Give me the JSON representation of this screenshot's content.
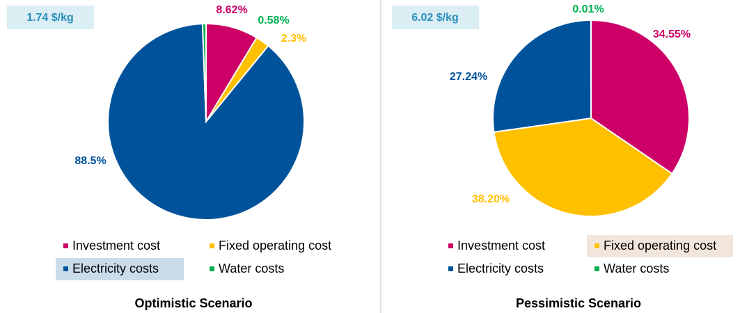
{
  "chart_data": [
    {
      "type": "pie",
      "title": "Optimistic Scenario",
      "annotation": "1.74 $/kg",
      "categories": [
        "Investment cost",
        "Fixed operating cost",
        "Electricity costs",
        "Water costs"
      ],
      "values": [
        8.62,
        2.3,
        88.5,
        0.58
      ],
      "value_labels": [
        "8.62%",
        "2.3%",
        "88.5%",
        "0.58%"
      ],
      "colors": [
        "#cc0066",
        "#ffc000",
        "#00539b",
        "#00b050"
      ]
    },
    {
      "type": "pie",
      "title": "Pessimistic Scenario",
      "annotation": "6.02 $/kg",
      "categories": [
        "Investment cost",
        "Fixed operating cost",
        "Electricity costs",
        "Water costs"
      ],
      "values": [
        34.55,
        38.2,
        27.24,
        0.01
      ],
      "value_labels": [
        "34.55%",
        "38.20%",
        "27.24%",
        "0.01%"
      ],
      "colors": [
        "#cc0066",
        "#ffc000",
        "#00539b",
        "#00b050"
      ]
    }
  ]
}
